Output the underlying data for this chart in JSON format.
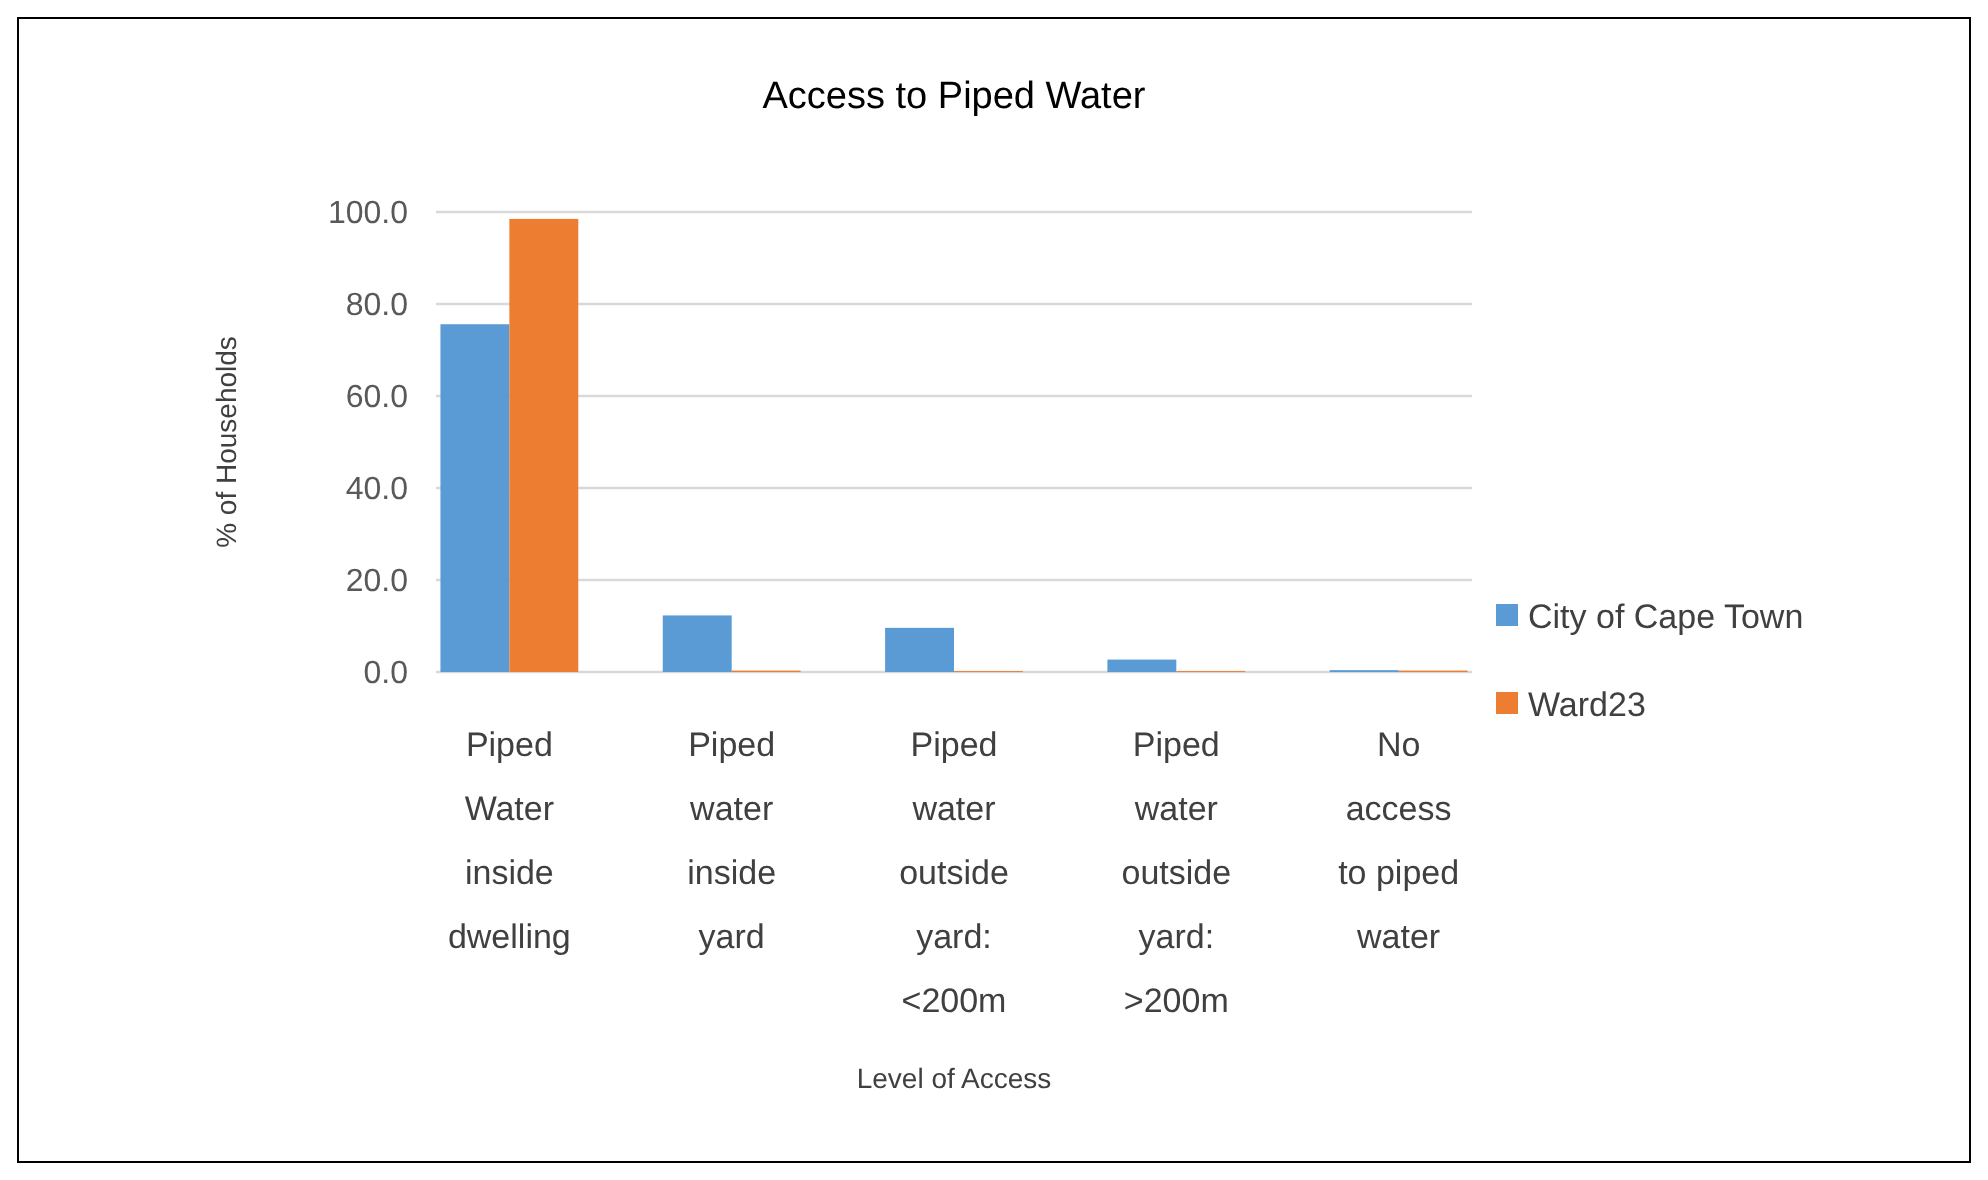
{
  "chart_data": {
    "type": "bar",
    "title": "Access to Piped Water",
    "xlabel": "Level of Access",
    "ylabel": "% of Households",
    "categories": [
      "Piped Water inside dwelling",
      "Piped water inside yard",
      "Piped water outside yard: <200m",
      "Piped water outside yard: >200m",
      "No access to piped water"
    ],
    "series": [
      {
        "name": "City of Cape Town",
        "color": "#5b9bd5",
        "values": [
          75.6,
          12.3,
          9.6,
          2.7,
          0.4
        ]
      },
      {
        "name": "Ward23",
        "color": "#ed7d31",
        "values": [
          98.5,
          0.3,
          0.2,
          0.2,
          0.3
        ]
      }
    ],
    "ylim": [
      0,
      100
    ],
    "yticks": [
      {
        "value": 0,
        "label": "0.0"
      },
      {
        "value": 20,
        "label": "20.0"
      },
      {
        "value": 40,
        "label": "40.0"
      },
      {
        "value": 60,
        "label": "60.0"
      },
      {
        "value": 80,
        "label": "80.0"
      },
      {
        "value": 100,
        "label": "100.0"
      }
    ],
    "grid": "y",
    "legend": "right"
  }
}
